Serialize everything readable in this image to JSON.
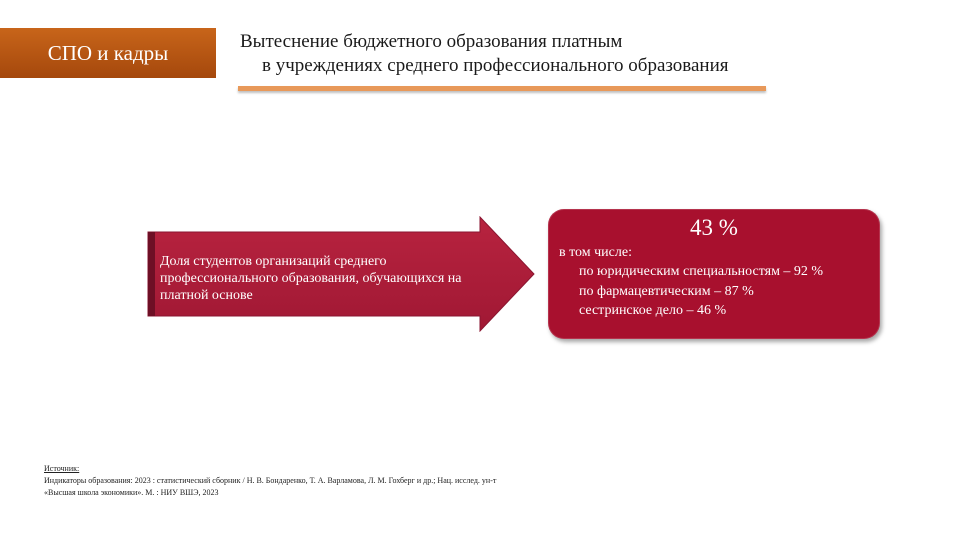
{
  "section_tag": "СПО и кадры",
  "title": {
    "line1": "Вытеснение бюджетного образования платным",
    "line2": "в учреждениях среднего профессионального образования"
  },
  "arrow": {
    "text": "Доля студентов организаций среднего профессионального образования, обучающихся на платной основе"
  },
  "result": {
    "value": "43 %",
    "intro": "в том числе:",
    "items": [
      "по юридическим специальностям – 92 %",
      "по фармацевтическим – 87 %",
      "сестринское дело – 46 %"
    ]
  },
  "source": {
    "label": "Источник:",
    "line1": "Индикаторы образования: 2023 : статистический сборник / Н. В. Бондаренко, Т. А. Варламова, Л. М. Гохберг и др.; Нац. исслед. ун-т",
    "line2": "«Высшая школа экономики». М. : НИУ ВШЭ, 2023"
  },
  "colors": {
    "tag_bg": "#b5560f",
    "accent_rule": "#e8995a",
    "arrow_fill": "#ae1e3c",
    "box_fill": "#a8102e"
  }
}
